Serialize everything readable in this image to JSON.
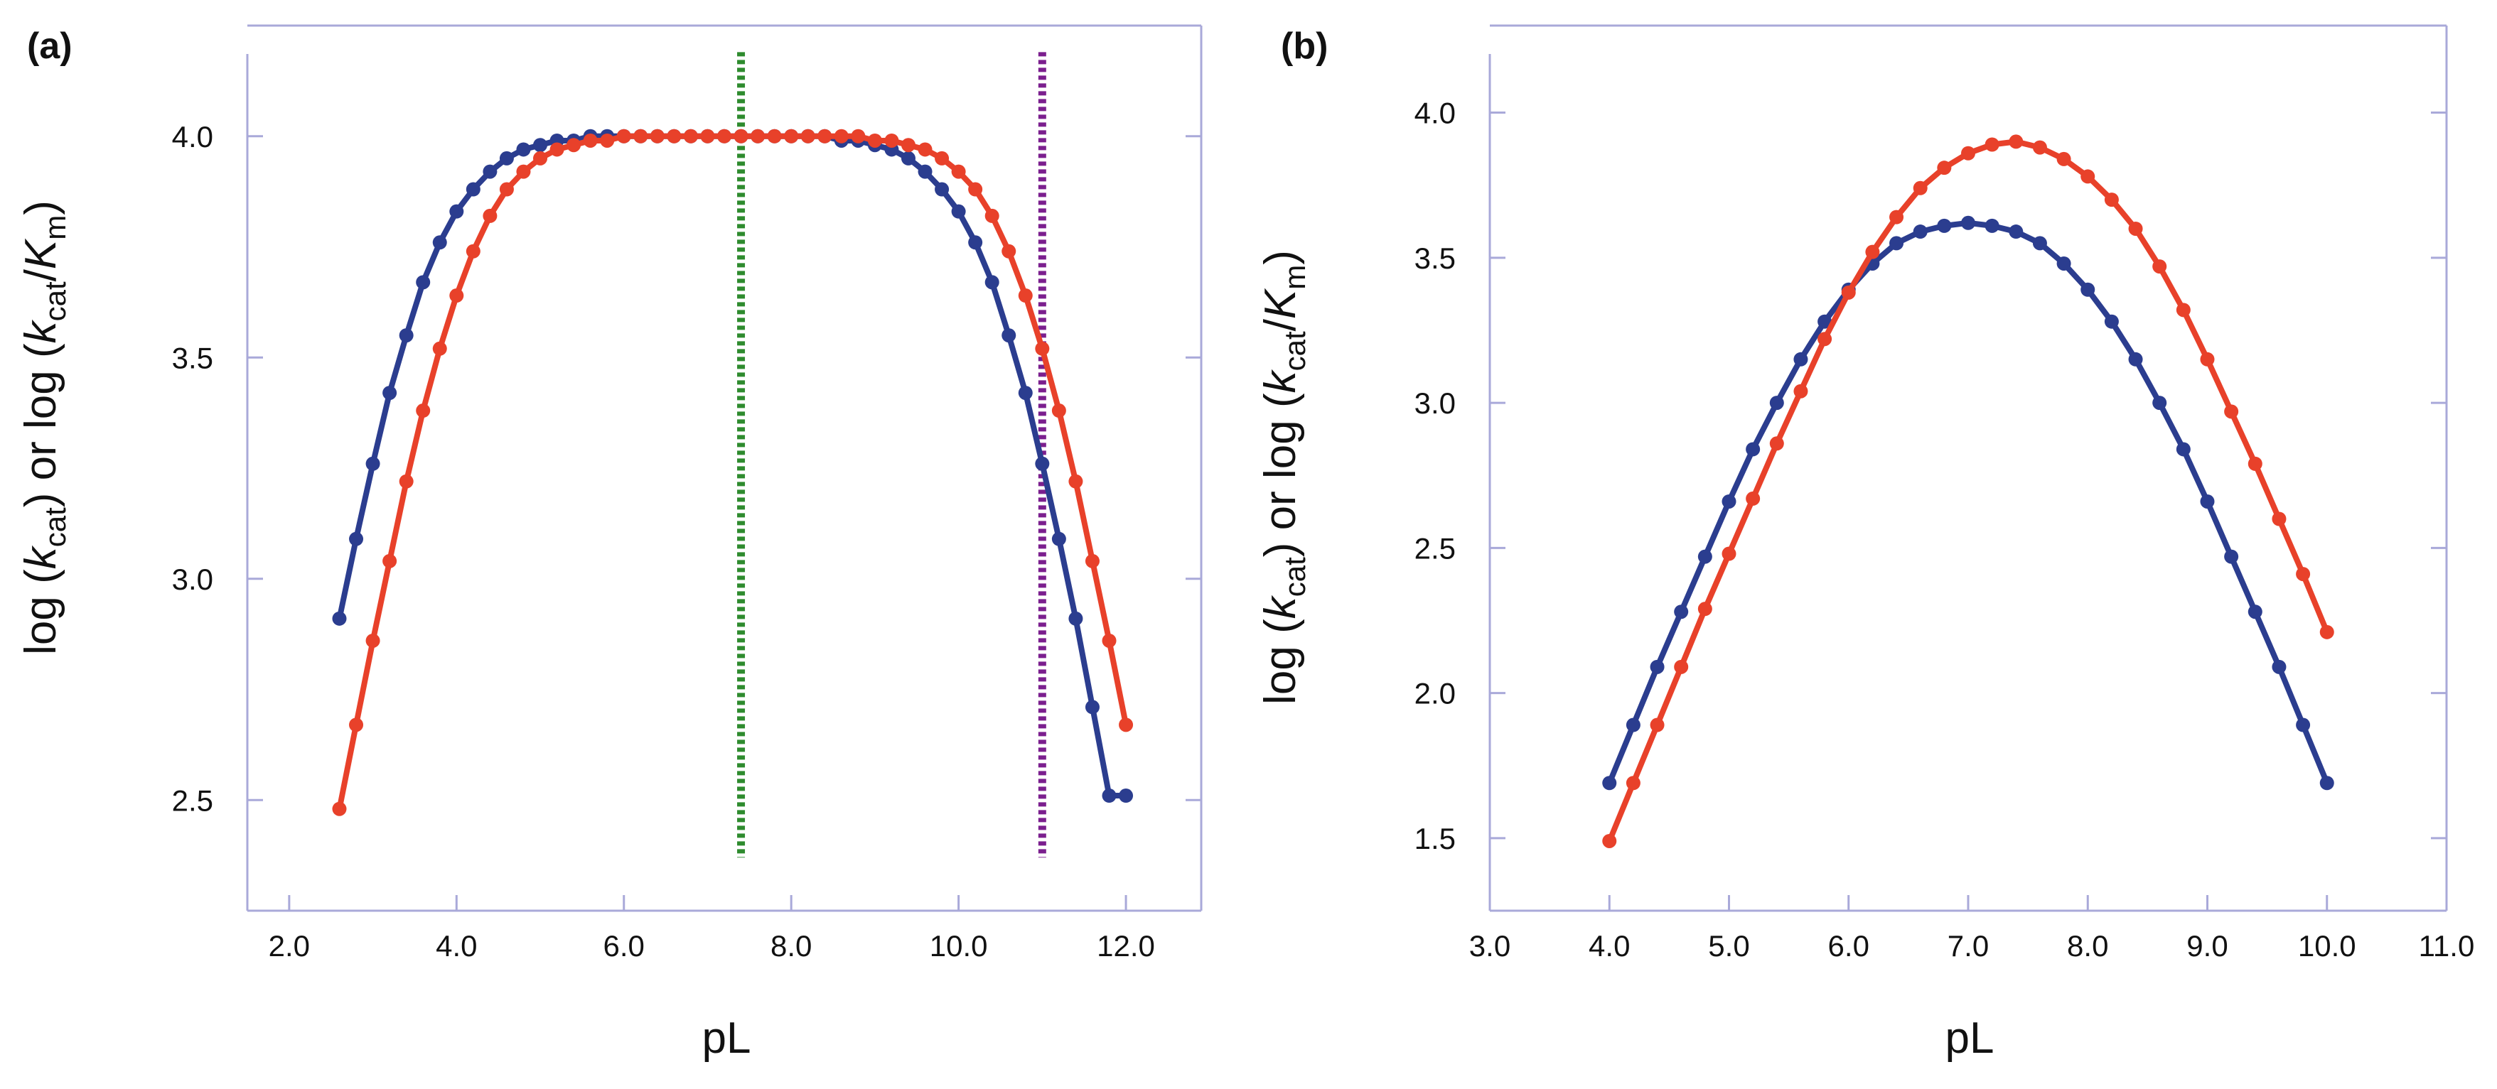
{
  "colors": {
    "axis": "#a9a9d9",
    "text": "#111111",
    "series_blue": "#2b3d8f",
    "series_red": "#e8412a",
    "marker_green": "#2e8b2e",
    "marker_purple": "#7b1f8e"
  },
  "chart_data": [
    {
      "type": "line",
      "panel_label": "(a)",
      "xlabel": "pL",
      "ylabel": {
        "prefix1": "log (",
        "k1": "k",
        "sub1": "cat",
        "mid": ") or log (",
        "k2": "k",
        "sub2": "cat",
        "slash": "/",
        "K": "K",
        "sub3": "m",
        "suffix": ")"
      },
      "xlim": [
        1.5,
        12.9
      ],
      "ylim": [
        2.25,
        4.25
      ],
      "x_ticks": [
        2.0,
        4.0,
        6.0,
        8.0,
        10.0,
        12.0
      ],
      "x_tick_labels": [
        "2.0",
        "4.0",
        "6.0",
        "8.0",
        "10.0",
        "12.0"
      ],
      "y_ticks": [
        2.5,
        3.0,
        3.5,
        4.0
      ],
      "y_tick_labels": [
        "2.5",
        "3.0",
        "3.5",
        "4.0"
      ],
      "vlines": [
        {
          "x": 7.4,
          "y_range": [
            2.37,
            4.19
          ],
          "color": "#2e8b2e",
          "style": "dotted"
        },
        {
          "x": 11.0,
          "y_range": [
            2.37,
            4.19
          ],
          "color": "#7b1f8e",
          "style": "dotted"
        }
      ],
      "series": [
        {
          "name": "blue",
          "color": "#2b3d8f",
          "x": [
            2.6,
            2.8,
            3.0,
            3.2,
            3.4,
            3.6,
            3.8,
            4.0,
            4.2,
            4.4,
            4.6,
            4.8,
            5.0,
            5.2,
            5.4,
            5.6,
            5.8,
            6.0,
            6.2,
            6.4,
            6.6,
            6.8,
            7.0,
            7.2,
            7.4,
            7.6,
            7.8,
            8.0,
            8.2,
            8.4,
            8.6,
            8.8,
            9.0,
            9.2,
            9.4,
            9.6,
            9.8,
            10.0,
            10.2,
            10.4,
            10.6,
            10.8,
            11.0,
            11.2,
            11.4,
            11.6,
            11.8,
            12.0
          ],
          "y": [
            2.91,
            3.09,
            3.26,
            3.42,
            3.55,
            3.67,
            3.76,
            3.83,
            3.88,
            3.92,
            3.95,
            3.97,
            3.98,
            3.99,
            3.99,
            4.0,
            4.0,
            4.0,
            4.0,
            4.0,
            4.0,
            4.0,
            4.0,
            4.0,
            4.0,
            4.0,
            4.0,
            4.0,
            4.0,
            4.0,
            3.99,
            3.99,
            3.98,
            3.97,
            3.95,
            3.92,
            3.88,
            3.83,
            3.76,
            3.67,
            3.55,
            3.42,
            3.26,
            3.09,
            2.91,
            2.71,
            2.51,
            2.51
          ]
        },
        {
          "name": "red",
          "color": "#e8412a",
          "x": [
            2.6,
            2.8,
            3.0,
            3.2,
            3.4,
            3.6,
            3.8,
            4.0,
            4.2,
            4.4,
            4.6,
            4.8,
            5.0,
            5.2,
            5.4,
            5.6,
            5.8,
            6.0,
            6.2,
            6.4,
            6.6,
            6.8,
            7.0,
            7.2,
            7.4,
            7.6,
            7.8,
            8.0,
            8.2,
            8.4,
            8.6,
            8.8,
            9.0,
            9.2,
            9.4,
            9.6,
            9.8,
            10.0,
            10.2,
            10.4,
            10.6,
            10.8,
            11.0,
            11.2,
            11.4,
            11.6,
            11.8,
            12.0
          ],
          "y": [
            2.48,
            2.67,
            2.86,
            3.04,
            3.22,
            3.38,
            3.52,
            3.64,
            3.74,
            3.82,
            3.88,
            3.92,
            3.95,
            3.97,
            3.98,
            3.99,
            3.99,
            4.0,
            4.0,
            4.0,
            4.0,
            4.0,
            4.0,
            4.0,
            4.0,
            4.0,
            4.0,
            4.0,
            4.0,
            4.0,
            4.0,
            4.0,
            3.99,
            3.99,
            3.98,
            3.97,
            3.95,
            3.92,
            3.88,
            3.82,
            3.74,
            3.64,
            3.52,
            3.38,
            3.22,
            3.04,
            2.86,
            2.67
          ]
        }
      ]
    },
    {
      "type": "line",
      "panel_label": "(b)",
      "xlabel": "pL",
      "ylabel": {
        "prefix1": "log (",
        "k1": "k",
        "sub1": "cat",
        "mid": ") or log (",
        "k2": "k",
        "sub2": "cat",
        "slash": "/",
        "K": "K",
        "sub3": "m",
        "suffix": ")"
      },
      "xlim": [
        3.0,
        11.0
      ],
      "ylim": [
        1.25,
        4.3
      ],
      "x_ticks": [
        3.0,
        4.0,
        5.0,
        6.0,
        7.0,
        8.0,
        9.0,
        10.0,
        11.0
      ],
      "x_tick_labels": [
        "3.0",
        "4.0",
        "5.0",
        "6.0",
        "7.0",
        "8.0",
        "9.0",
        "10.0",
        "11.0"
      ],
      "y_ticks": [
        1.5,
        2.0,
        2.5,
        3.0,
        3.5,
        4.0
      ],
      "y_tick_labels": [
        "1.5",
        "2.0",
        "2.5",
        "3.0",
        "3.5",
        "4.0"
      ],
      "vlines": [],
      "series": [
        {
          "name": "blue",
          "color": "#2b3d8f",
          "x": [
            4.0,
            4.2,
            4.4,
            4.6,
            4.8,
            5.0,
            5.2,
            5.4,
            5.6,
            5.8,
            6.0,
            6.2,
            6.4,
            6.6,
            6.8,
            7.0,
            7.2,
            7.4,
            7.6,
            7.8,
            8.0,
            8.2,
            8.4,
            8.6,
            8.8,
            9.0,
            9.2,
            9.4,
            9.6,
            9.8,
            10.0
          ],
          "y": [
            1.69,
            1.89,
            2.09,
            2.28,
            2.47,
            2.66,
            2.84,
            3.0,
            3.15,
            3.28,
            3.39,
            3.48,
            3.55,
            3.59,
            3.61,
            3.62,
            3.61,
            3.59,
            3.55,
            3.48,
            3.39,
            3.28,
            3.15,
            3.0,
            2.84,
            2.66,
            2.47,
            2.28,
            2.09,
            1.89,
            1.69
          ]
        },
        {
          "name": "red",
          "color": "#e8412a",
          "x": [
            4.0,
            4.2,
            4.4,
            4.6,
            4.8,
            5.0,
            5.2,
            5.4,
            5.6,
            5.8,
            6.0,
            6.2,
            6.4,
            6.6,
            6.8,
            7.0,
            7.2,
            7.4,
            7.6,
            7.8,
            8.0,
            8.2,
            8.4,
            8.6,
            8.8,
            9.0,
            9.2,
            9.4,
            9.6,
            9.8,
            10.0
          ],
          "y": [
            1.49,
            1.69,
            1.89,
            2.09,
            2.29,
            2.48,
            2.67,
            2.86,
            3.04,
            3.22,
            3.38,
            3.52,
            3.64,
            3.74,
            3.81,
            3.86,
            3.89,
            3.9,
            3.88,
            3.84,
            3.78,
            3.7,
            3.6,
            3.47,
            3.32,
            3.15,
            2.97,
            2.79,
            2.6,
            2.41,
            2.21
          ]
        }
      ]
    }
  ]
}
